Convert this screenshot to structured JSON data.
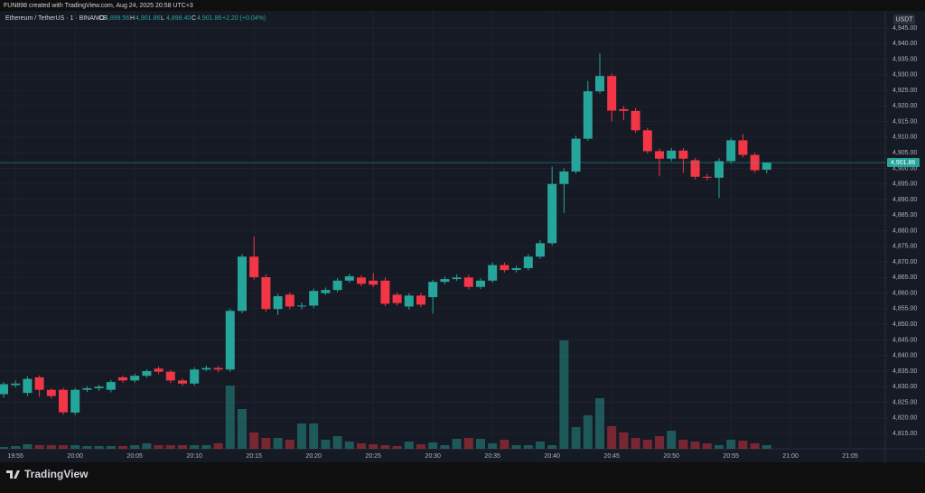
{
  "chart_data": {
    "type": "candlestick",
    "attribution": "FUN898 created with TradingView.com, Aug 24, 2025 20:58 UTC+3",
    "title": "Ethereum / TetherUS · 1 · BINANCE",
    "brand": "TradingView",
    "currency": "USDT",
    "ohlc_legend": [
      {
        "key": "O",
        "text": "4,899.56"
      },
      {
        "key": "H",
        "text": "4,901.86"
      },
      {
        "key": "L",
        "text": "4,898.40"
      },
      {
        "key": "C",
        "text": "4,901.86"
      }
    ],
    "change_label": "+2.20 (+0.04%)",
    "up_color": "#26a69a",
    "down_color": "#f23645",
    "categories": [
      null,
      "19:55",
      null,
      null,
      null,
      null,
      "20:00",
      null,
      null,
      null,
      null,
      "20:05",
      null,
      null,
      null,
      null,
      "20:10",
      null,
      null,
      null,
      null,
      "20:15",
      null,
      null,
      null,
      null,
      "20:20",
      null,
      null,
      null,
      null,
      "20:25",
      null,
      null,
      null,
      null,
      "20:30",
      null,
      null,
      null,
      null,
      "20:35",
      null,
      null,
      null,
      null,
      "20:40",
      null,
      null,
      null,
      null,
      "20:45",
      null,
      null,
      null,
      null,
      "20:50",
      null,
      null,
      null,
      null,
      "20:55",
      null,
      null,
      null
    ],
    "future_labels": [
      "21:00",
      "21:05"
    ],
    "open": [
      4827.6,
      4830.5,
      4828,
      4833,
      4829,
      4829,
      4821.7,
      4829,
      4829.5,
      4829,
      4833,
      4832,
      4833.5,
      4835.8,
      4834.8,
      4832,
      4831,
      4835.5,
      4836,
      4835.5,
      4854.3,
      4871.7,
      4865.1,
      4854.9,
      4859.5,
      4855.7,
      4856,
      4860,
      4861,
      4864,
      4865,
      4864,
      4864,
      4859.5,
      4855.7,
      4859.2,
      4858.7,
      4863.6,
      4864.5,
      4865,
      4862,
      4864,
      4869,
      4867.4,
      4868,
      4871.7,
      4876,
      4895,
      4899,
      4909.5,
      4924.7,
      4929.6,
      4919,
      4918.4,
      4912.2,
      4905.5,
      4903.1,
      4905.7,
      4902.6,
      4897.3,
      4897,
      4902.3,
      4909,
      4904.3,
      4899.56
    ],
    "high": [
      4831.5,
      4832,
      4833.3,
      4833.6,
      4829.5,
      4829.6,
      4829.6,
      4830.2,
      4830.6,
      4832.2,
      4833.6,
      4834.2,
      4835.6,
      4836.5,
      4835.4,
      4832.6,
      4836.2,
      4836.8,
      4836.6,
      4855,
      4872.5,
      4878.1,
      4866,
      4859.8,
      4860.2,
      4857,
      4861.5,
      4861.8,
      4864.8,
      4866.2,
      4865.8,
      4866.5,
      4865,
      4860.3,
      4860,
      4860,
      4864.3,
      4865.3,
      4866,
      4865.8,
      4864.8,
      4869.8,
      4869.8,
      4868.8,
      4872.5,
      4877,
      4900.5,
      4900,
      4910.5,
      4928,
      4936.9,
      4930.4,
      4920,
      4919.3,
      4913,
      4906.3,
      4906.5,
      4906.5,
      4903.4,
      4898.2,
      4903.2,
      4909.8,
      4911,
      4905,
      4901.86
    ],
    "low": [
      4826.5,
      4829.7,
      4827,
      4826.8,
      4826.2,
      4821,
      4820.9,
      4828.3,
      4828.7,
      4828.2,
      4831.2,
      4831.3,
      4832.8,
      4834,
      4831.2,
      4830.2,
      4830.3,
      4835,
      4834.7,
      4834.8,
      4853.5,
      4864.3,
      4854,
      4853,
      4854.8,
      4854.8,
      4855.2,
      4859.4,
      4860.3,
      4863.3,
      4862.2,
      4861.9,
      4855.8,
      4856,
      4854.7,
      4855.5,
      4853.5,
      4862.8,
      4863.9,
      4861.2,
      4861.3,
      4863.4,
      4866.6,
      4866.6,
      4867.3,
      4871,
      4875.3,
      4885.7,
      4898.3,
      4908.8,
      4924,
      4915,
      4915.5,
      4911.4,
      4904.7,
      4897.5,
      4902.3,
      4898.5,
      4896.5,
      4896.2,
      4890.5,
      4901.5,
      4903.5,
      4898.6,
      4898.4
    ],
    "close": [
      4830.8,
      4831,
      4832.5,
      4829,
      4827,
      4821.8,
      4829,
      4829.5,
      4830,
      4831.5,
      4832,
      4833.5,
      4835,
      4834.8,
      4832,
      4831,
      4835.5,
      4836,
      4835.5,
      4854.3,
      4871.7,
      4865.1,
      4854.9,
      4859,
      4855.7,
      4856,
      4860.7,
      4861,
      4864,
      4865.4,
      4863,
      4862.7,
      4856.6,
      4856.8,
      4859.2,
      4856.3,
      4863.6,
      4864.5,
      4865,
      4862,
      4864,
      4869,
      4867.4,
      4868,
      4871.7,
      4876,
      4895,
      4899,
      4909.5,
      4924.7,
      4929.6,
      4918.5,
      4918.4,
      4912.2,
      4905.5,
      4903.1,
      4905.7,
      4903.1,
      4897.3,
      4897,
      4902.3,
      4909,
      4904.3,
      4899.4,
      4901.86
    ],
    "volume": [
      2,
      3,
      5,
      4,
      4,
      4,
      4,
      3,
      3,
      3,
      3,
      4,
      6,
      4,
      4,
      4,
      4,
      4,
      6,
      70,
      44,
      18,
      12,
      12,
      10,
      28,
      28,
      10,
      14,
      8,
      6,
      5,
      4,
      3,
      8,
      5,
      7,
      4,
      11,
      12,
      11,
      6,
      10,
      4,
      4,
      8,
      4,
      120,
      24,
      37,
      56,
      25,
      18,
      12,
      10,
      14,
      20,
      10,
      8,
      6,
      4,
      10,
      9,
      6,
      4
    ],
    "last_price_label": "4,901.86",
    "ylim": [
      4810.1,
      4950.5
    ],
    "yticks": [
      {
        "value": 4945,
        "label": "4,945.00"
      },
      {
        "value": 4940,
        "label": "4,940.00"
      },
      {
        "value": 4935,
        "label": "4,935.00"
      },
      {
        "value": 4930,
        "label": "4,930.00"
      },
      {
        "value": 4925,
        "label": "4,925.00"
      },
      {
        "value": 4920,
        "label": "4,920.00"
      },
      {
        "value": 4915,
        "label": "4,915.00"
      },
      {
        "value": 4910,
        "label": "4,910.00"
      },
      {
        "value": 4905,
        "label": "4,905.00"
      },
      {
        "value": 4900,
        "label": "4,900.00"
      },
      {
        "value": 4895,
        "label": "4,895.00"
      },
      {
        "value": 4890,
        "label": "4,890.00"
      },
      {
        "value": 4885,
        "label": "4,885.00"
      },
      {
        "value": 4880,
        "label": "4,880.00"
      },
      {
        "value": 4875,
        "label": "4,875.00"
      },
      {
        "value": 4870,
        "label": "4,870.00"
      },
      {
        "value": 4865,
        "label": "4,865.00"
      },
      {
        "value": 4860,
        "label": "4,860.00"
      },
      {
        "value": 4855,
        "label": "4,855.00"
      },
      {
        "value": 4850,
        "label": "4,850.00"
      },
      {
        "value": 4845,
        "label": "4,845.00"
      },
      {
        "value": 4840,
        "label": "4,840.00"
      },
      {
        "value": 4835,
        "label": "4,835.00"
      },
      {
        "value": 4830,
        "label": "4,830.00"
      },
      {
        "value": 4825,
        "label": "4,825.00"
      },
      {
        "value": 4820,
        "label": "4,820.00"
      },
      {
        "value": 4815,
        "label": "4,815.00"
      }
    ],
    "grid": true
  }
}
